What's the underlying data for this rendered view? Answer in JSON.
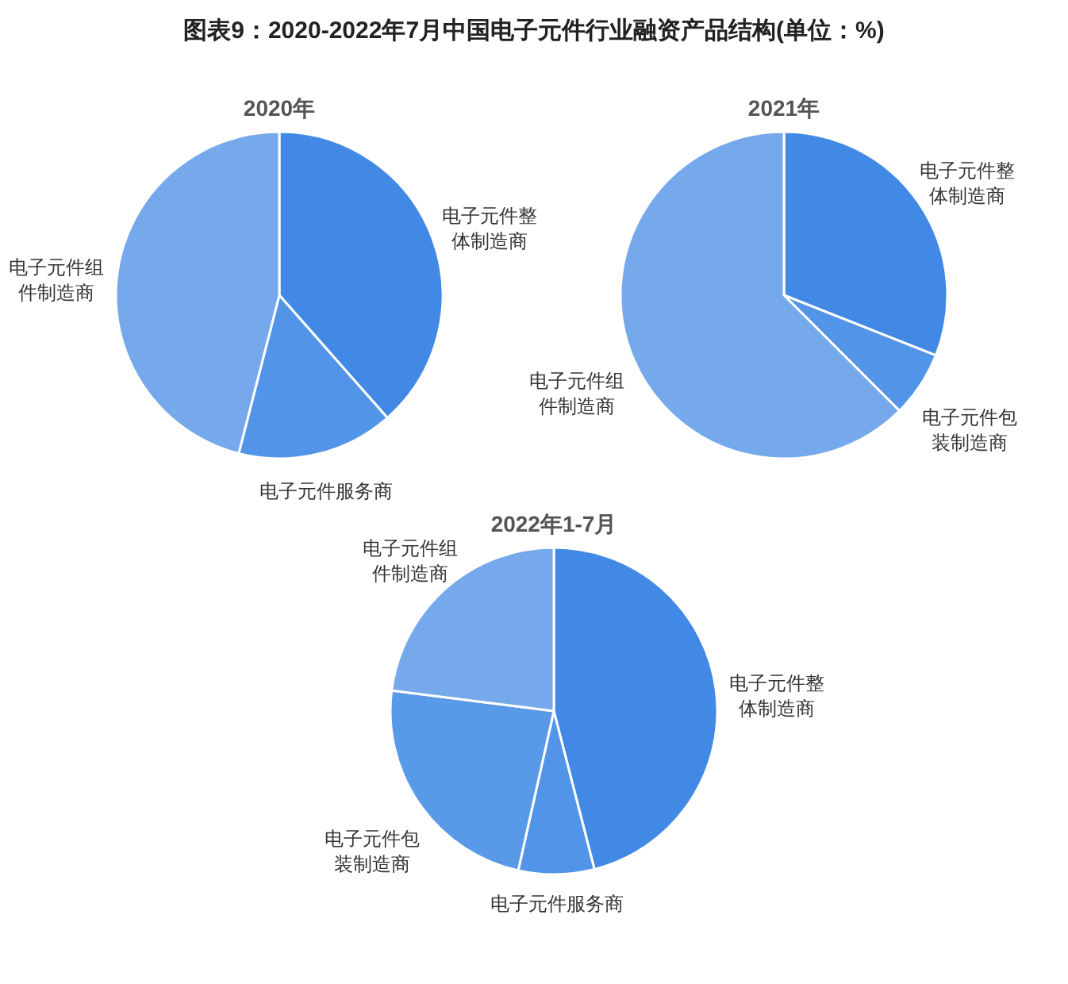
{
  "chart_data": [
    {
      "type": "pie",
      "title": "图表9：2020-2022年7月中国电子元件行业融资产品结构(单位：%)",
      "subtitle": "2020年",
      "categories": [
        "电子元件整体制造商",
        "电子元件服务商",
        "电子元件组件制造商"
      ],
      "values": [
        38.5,
        15.5,
        46
      ],
      "colors": [
        "#4189e4",
        "#5295e8",
        "#75a9ec"
      ]
    },
    {
      "type": "pie",
      "subtitle": "2021年",
      "categories": [
        "电子元件整体制造商",
        "电子元件包装制造商",
        "电子元件组件制造商"
      ],
      "values": [
        31,
        6.5,
        62.5
      ],
      "colors": [
        "#4189e4",
        "#5295e8",
        "#75a9ec"
      ]
    },
    {
      "type": "pie",
      "subtitle": "2022年1-7月",
      "categories": [
        "电子元件整体制造商",
        "电子元件服务商",
        "电子元件包装制造商",
        "电子元件组件制造商"
      ],
      "values": [
        46,
        7.5,
        23.5,
        23
      ],
      "colors": [
        "#4189e4",
        "#5295e8",
        "#5899e8",
        "#75a9ec"
      ]
    }
  ]
}
